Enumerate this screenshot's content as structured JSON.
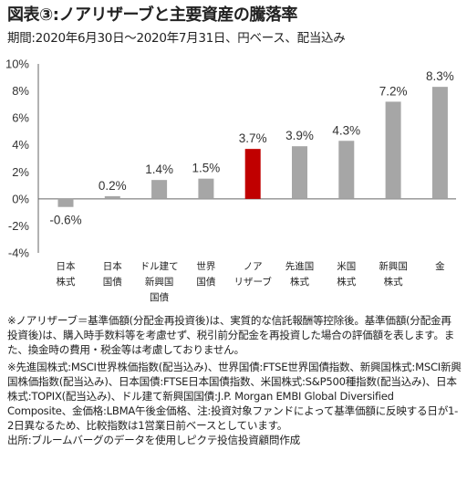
{
  "title": "図表③:ノアリザーブと主要資産の騰落率",
  "subtitle": "期間:2020年6月30日～2020年7月31日、円ベース、配当込み",
  "chart_data": {
    "type": "bar",
    "categories": [
      [
        "日本",
        "株式"
      ],
      [
        "日本",
        "国債"
      ],
      [
        "ドル建て",
        "新興国",
        "国債"
      ],
      [
        "世界",
        "国債"
      ],
      [
        "ノア",
        "リザーブ"
      ],
      [
        "先進国",
        "株式"
      ],
      [
        "米国",
        "株式"
      ],
      [
        "新興国",
        "株式"
      ],
      [
        "金"
      ]
    ],
    "values": [
      -0.6,
      0.2,
      1.4,
      1.5,
      3.7,
      3.9,
      4.3,
      7.2,
      8.3
    ],
    "value_labels": [
      "-0.6%",
      "0.2%",
      "1.4%",
      "1.5%",
      "3.7%",
      "3.9%",
      "4.3%",
      "7.2%",
      "8.3%"
    ],
    "ylim": [
      -4,
      10
    ],
    "yticks": [
      10,
      8,
      6,
      4,
      2,
      0,
      -2,
      -4
    ],
    "ytick_labels": [
      "10%",
      "8%",
      "6%",
      "4%",
      "2%",
      "0%",
      "-2%",
      "-4%"
    ],
    "colors": {
      "default": "#a6a6a6",
      "highlight": "#c00000"
    },
    "highlight_index": 4,
    "grid": false
  },
  "notes": {
    "note1": "※ノアリザーブ＝基準価額(分配金再投資後)は、実質的な信託報酬等控除後。基準価額(分配金再投資後)は、購入時手数料等を考慮せず、税引前分配金を再投資した場合の評価額を表します。また、換金時の費用・税金等は考慮しておりません。",
    "note2": "※先進国株式:MSCI世界株価指数(配当込み)、世界国債:FTSE世界国債指数、新興国株式:MSCI新興国株価指数(配当込み)、日本国債:FTSE日本国債指数、米国株式:S&P500種指数(配当込み)、日本株式:TOPIX(配当込み)、ドル建て新興国国債:J.P. Morgan EMBI Global Diversified Composite、金価格:LBMA午後金価格、注:投資対象ファンドによって基準価額に反映する日が1-2日異なるため、比較指数は1営業日前ベースとしています。",
    "source": "出所:ブルームバーグのデータを使用しピクテ投信投資顧問作成"
  }
}
